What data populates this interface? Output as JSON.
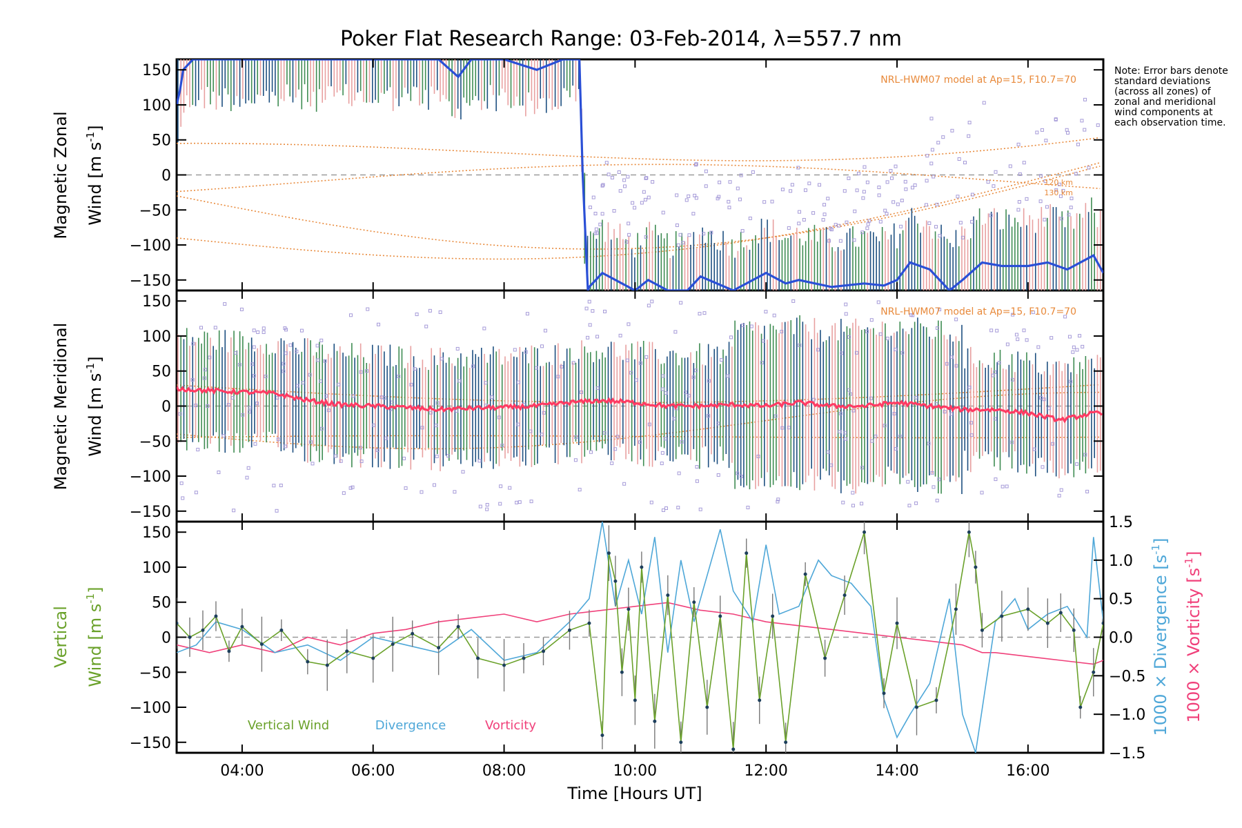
{
  "title": "Poker Flat Research Range: 03-Feb-2014, λ=557.7 nm",
  "note": "Note: Error bars denote standard deviations (across all zones) of zonal and meridional wind components at each observation time.",
  "colors": {
    "model": "#e8893a",
    "zonal_mean": "#2a4fd6",
    "zonal_mean_light": "#45a6e0",
    "meridional_mean": "#ff3b63",
    "errorbar_dark": "#1d4f80",
    "errorbar_green": "#3e8c52",
    "errorbar_pink": "#e8a0a0",
    "scatter": "#a59ad8",
    "vertical": "#6aa12a",
    "divergence": "#4ea7d8",
    "vorticity": "#f0407a",
    "zero_line": "#9a9a9a"
  },
  "xaxis": {
    "label": "Time [Hours UT]",
    "range_hours": [
      3.0,
      17.15
    ],
    "ticks": [
      "04:00",
      "06:00",
      "08:00",
      "10:00",
      "12:00",
      "14:00",
      "16:00"
    ],
    "tick_hours": [
      4,
      6,
      8,
      10,
      12,
      14,
      16
    ]
  },
  "panels": {
    "zonal": {
      "ylabel_line1": "Magnetic Zonal",
      "ylabel_line2": "Wind [m s",
      "ylabel_sup": "-1",
      "ylabel_end": "]",
      "ylim": [
        -165,
        165
      ],
      "yticks": [
        "150",
        "100",
        "50",
        "0",
        "−50",
        "−100",
        "−150"
      ],
      "ytick_values": [
        150,
        100,
        50,
        0,
        -50,
        -100,
        -150
      ],
      "model_label": "NRL-HWM07 model at Ap=15, F10.7=70",
      "model_alt_labels": [
        "120 km",
        "130 km"
      ]
    },
    "meridional": {
      "ylabel_line1": "Magnetic Meridional",
      "ylabel_line2": "Wind [m s",
      "ylabel_sup": "-1",
      "ylabel_end": "]",
      "ylim": [
        -165,
        165
      ],
      "yticks": [
        "150",
        "100",
        "50",
        "0",
        "−50",
        "−100",
        "−150"
      ],
      "ytick_values": [
        150,
        100,
        50,
        0,
        -50,
        -100,
        -150
      ],
      "model_label": "NRL-HWM07 model at Ap=15, F10.7=70"
    },
    "vertical": {
      "ylabel_line1": "Vertical",
      "ylabel_line2": "Wind [m s",
      "ylabel_sup": "-1",
      "ylabel_end": "]",
      "ylim": [
        -165,
        165
      ],
      "yticks": [
        "150",
        "100",
        "50",
        "0",
        "−50",
        "−100",
        "−150"
      ],
      "ytick_values": [
        150,
        100,
        50,
        0,
        -50,
        -100,
        -150
      ],
      "right_ylim": [
        -1.5,
        1.5
      ],
      "right_yticks": [
        "1.5",
        "1.0",
        "0.5",
        "0.0",
        "−0.5",
        "−1.0",
        "−1.5"
      ],
      "right_ytick_values": [
        1.5,
        1.0,
        0.5,
        0.0,
        -0.5,
        -1.0,
        -1.5
      ],
      "right_label_div": "1000 × Divergence [s",
      "right_label_vort": "1000 × Vorticity [s",
      "right_label_sup": "-1",
      "right_label_end": "]",
      "legend": [
        "Vertical Wind",
        "Divergence",
        "Vorticity"
      ]
    }
  },
  "chart_data": [
    {
      "type": "line",
      "title": "Poker Flat Research Range: 03-Feb-2014, λ=557.7 nm",
      "xlabel": "Time [Hours UT]",
      "ylabel": "Magnetic Zonal Wind [m s-1]",
      "ylim": [
        -165,
        165
      ],
      "grid": false,
      "series": [
        {
          "name": "zonal_mean",
          "x": [
            3.0,
            3.05,
            3.1,
            3.25,
            3.5,
            4.0,
            4.5,
            5.0,
            5.5,
            6.0,
            6.5,
            7.0,
            7.3,
            7.5,
            8.0,
            8.5,
            8.9,
            9.15,
            9.2,
            9.28,
            9.3,
            9.5,
            9.8,
            10.0,
            10.2,
            10.5,
            10.8,
            11.0,
            11.5,
            12.0,
            12.3,
            12.5,
            13.0,
            13.5,
            13.8,
            14.0,
            14.2,
            14.5,
            14.8,
            15.0,
            15.3,
            15.6,
            16.0,
            16.3,
            16.6,
            17.0,
            17.15
          ],
          "y": [
            100,
            120,
            150,
            165,
            165,
            165,
            165,
            165,
            165,
            165,
            165,
            165,
            140,
            165,
            165,
            150,
            165,
            165,
            0,
            -165,
            -160,
            -140,
            -155,
            -165,
            -150,
            -165,
            -165,
            -145,
            -165,
            -140,
            -155,
            -150,
            -160,
            -155,
            -158,
            -150,
            -125,
            -135,
            -165,
            -150,
            -125,
            -130,
            -130,
            -125,
            -135,
            -115,
            -140
          ]
        }
      ]
    },
    {
      "type": "line",
      "ylabel": "Magnetic Meridional Wind [m s-1]",
      "ylim": [
        -165,
        165
      ],
      "grid": false,
      "series": [
        {
          "name": "meridional_mean",
          "x": [
            3.0,
            3.5,
            4.0,
            4.5,
            5.0,
            5.5,
            6.0,
            6.5,
            7.0,
            7.5,
            8.0,
            8.5,
            9.0,
            9.5,
            10.0,
            10.5,
            11.0,
            11.5,
            12.0,
            12.5,
            13.0,
            13.5,
            14.0,
            14.5,
            15.0,
            15.5,
            16.0,
            16.5,
            17.0,
            17.15
          ],
          "y": [
            25,
            22,
            20,
            18,
            8,
            2,
            0,
            -2,
            -5,
            -3,
            -2,
            0,
            5,
            8,
            5,
            0,
            0,
            2,
            0,
            5,
            0,
            0,
            5,
            0,
            -5,
            -5,
            -10,
            -20,
            -10,
            -12
          ]
        }
      ]
    },
    {
      "type": "line",
      "ylabel": "Vertical Wind [m s-1]",
      "ylim": [
        -165,
        165
      ],
      "y2lim": [
        -1.5,
        1.5
      ],
      "grid": false,
      "series": [
        {
          "name": "Vertical Wind",
          "axis": "left",
          "x": [
            3.0,
            3.2,
            3.4,
            3.6,
            3.8,
            4.0,
            4.3,
            4.6,
            5.0,
            5.3,
            5.6,
            6.0,
            6.3,
            6.6,
            7.0,
            7.3,
            7.6,
            8.0,
            8.3,
            8.6,
            9.0,
            9.3,
            9.5,
            9.6,
            9.7,
            9.8,
            9.9,
            10.0,
            10.1,
            10.3,
            10.5,
            10.7,
            10.9,
            11.1,
            11.3,
            11.5,
            11.7,
            11.9,
            12.1,
            12.3,
            12.6,
            12.9,
            13.2,
            13.5,
            13.8,
            14.0,
            14.3,
            14.6,
            14.9,
            15.1,
            15.2,
            15.3,
            15.6,
            16.0,
            16.3,
            16.5,
            16.7,
            16.8,
            17.0,
            17.15
          ],
          "y": [
            20,
            0,
            10,
            30,
            -20,
            15,
            -10,
            10,
            -35,
            -40,
            -20,
            -30,
            -10,
            5,
            -15,
            15,
            -30,
            -40,
            -30,
            -20,
            10,
            20,
            -140,
            120,
            80,
            -50,
            40,
            -90,
            100,
            -120,
            60,
            -150,
            50,
            -100,
            30,
            -160,
            120,
            -90,
            30,
            -150,
            90,
            -30,
            60,
            150,
            -80,
            20,
            -100,
            -90,
            40,
            150,
            100,
            10,
            30,
            40,
            20,
            35,
            10,
            -100,
            -50,
            20
          ]
        },
        {
          "name": "Divergence",
          "axis": "right",
          "x": [
            3.0,
            3.3,
            3.6,
            4.0,
            4.5,
            5.0,
            5.5,
            6.0,
            6.5,
            7.0,
            7.5,
            8.0,
            8.5,
            9.0,
            9.3,
            9.5,
            9.7,
            9.9,
            10.1,
            10.3,
            10.5,
            10.7,
            10.9,
            11.1,
            11.3,
            11.5,
            11.8,
            12.0,
            12.2,
            12.5,
            12.8,
            13.0,
            13.3,
            13.6,
            13.8,
            14.0,
            14.2,
            14.5,
            14.8,
            15.0,
            15.2,
            15.5,
            15.8,
            16.0,
            16.3,
            16.6,
            16.9,
            17.0,
            17.15
          ],
          "y": [
            -0.2,
            -0.1,
            0.2,
            0.1,
            -0.2,
            -0.1,
            -0.3,
            0.0,
            -0.1,
            -0.2,
            0.1,
            -0.3,
            -0.2,
            0.2,
            0.5,
            1.5,
            0.4,
            1.0,
            0.3,
            1.3,
            -0.2,
            1.0,
            0.2,
            0.8,
            1.4,
            0.6,
            0.2,
            1.2,
            0.3,
            0.4,
            1.0,
            0.8,
            0.7,
            0.4,
            -0.8,
            -1.3,
            -1.0,
            -0.6,
            0.5,
            -1.0,
            -1.5,
            0.2,
            0.5,
            0.1,
            0.3,
            0.4,
            0.0,
            1.3,
            0.2
          ]
        },
        {
          "name": "Vorticity",
          "axis": "right",
          "x": [
            3.0,
            3.5,
            4.0,
            4.5,
            5.0,
            5.5,
            6.0,
            6.5,
            7.0,
            7.5,
            8.0,
            8.5,
            9.0,
            9.5,
            10.0,
            10.5,
            11.0,
            11.5,
            12.0,
            12.5,
            13.0,
            13.5,
            14.0,
            14.5,
            15.0,
            15.3,
            15.5,
            16.0,
            16.5,
            17.0,
            17.15
          ],
          "y": [
            -0.1,
            -0.2,
            -0.1,
            -0.2,
            0.0,
            -0.1,
            0.05,
            0.1,
            0.2,
            0.25,
            0.3,
            0.2,
            0.3,
            0.35,
            0.4,
            0.45,
            0.35,
            0.3,
            0.2,
            0.15,
            0.1,
            0.05,
            0.0,
            -0.05,
            -0.1,
            -0.2,
            -0.2,
            -0.25,
            -0.3,
            -0.35,
            -0.3
          ]
        }
      ]
    }
  ]
}
